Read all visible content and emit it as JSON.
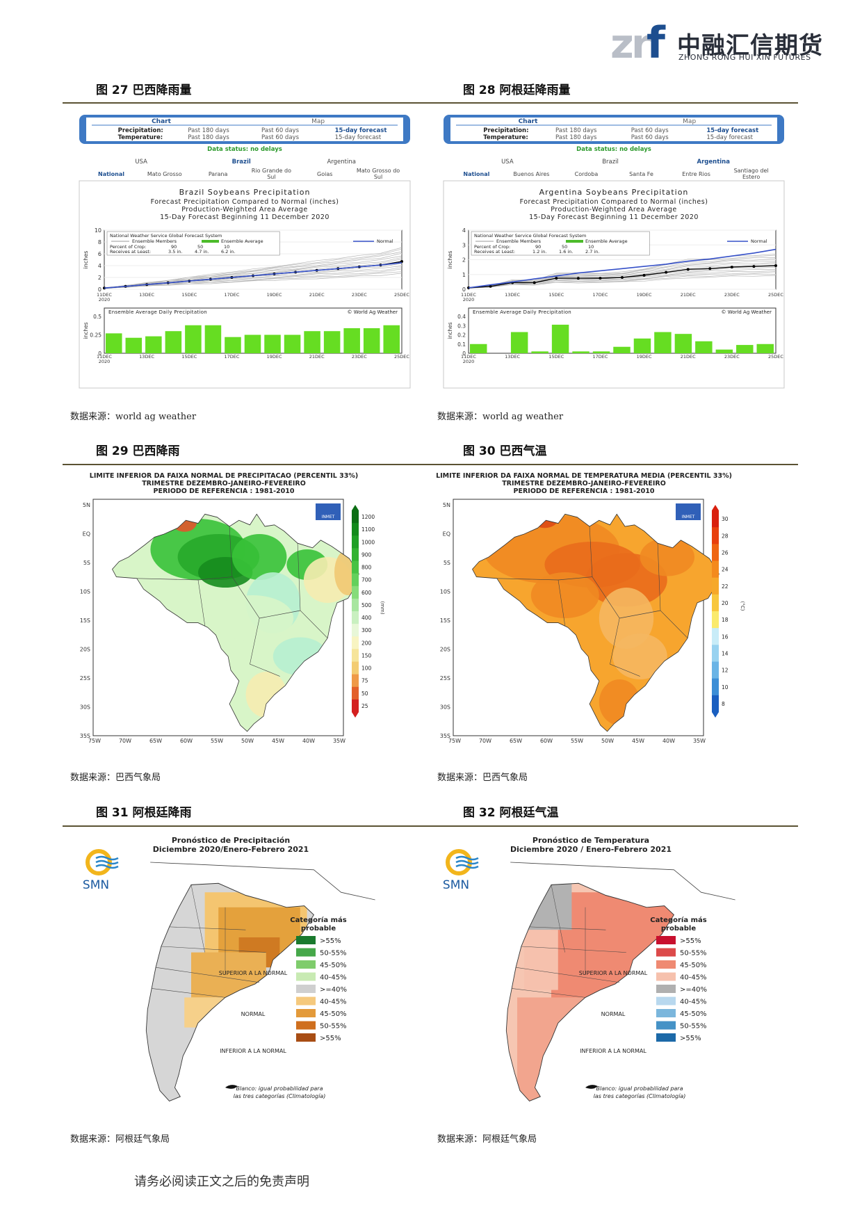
{
  "header": {
    "logo_cn": "中融汇信期货",
    "logo_en": "ZHONG RONG HUI XIN FUTURES"
  },
  "figures": {
    "fig27": {
      "title": "图 27 巴西降雨量",
      "source": "数据来源：world ag weather",
      "widget": {
        "tab_chart": "Chart",
        "tab_map": "Map",
        "row1_label": "Precipitation:",
        "row2_label": "Temperature:",
        "opt1": "Past 180 days",
        "opt2": "Past 60 days",
        "opt3": "15-day forecast",
        "status": "Data status: no delays",
        "countries": [
          "USA",
          "Brazil",
          "Argentina"
        ],
        "regions": [
          "National",
          "Mato Grosso",
          "Parana",
          "Rio Grande do Sul",
          "Goias",
          "Mato Grosso do Sul"
        ]
      },
      "chart_data": {
        "type": "line",
        "title": "Brazil Soybeans Precipitation",
        "subtitle": [
          "Forecast Precipitation Compared to Normal (inches)",
          "Production-Weighted Area Average",
          "15-Day Forecast Beginning 11 December 2020"
        ],
        "source_line": "National Weather Service Global Forecast System",
        "legend": [
          "Ensemble Members",
          "Ensemble Average",
          "Normal"
        ],
        "percent_crop_label": "Percent of Crop:",
        "receives_label": "Receives at Least:",
        "percent_values": [
          "90",
          "50",
          "10"
        ],
        "receives_values": [
          "3.5 in.",
          "4.7 in.",
          "6.2 in."
        ],
        "ylabel": "inches",
        "ylim": [
          0,
          10
        ],
        "yticks": [
          "0",
          "2",
          "4",
          "6",
          "8",
          "10"
        ],
        "xticks": [
          "11DEC\n2020",
          "13DEC",
          "15DEC",
          "17DEC",
          "19DEC",
          "21DEC",
          "23DEC",
          "25DEC"
        ],
        "series": [
          {
            "name": "Ensemble Average",
            "values": [
              0.2,
              0.5,
              0.8,
              1.1,
              1.4,
              1.7,
              2.0,
              2.3,
              2.6,
              2.9,
              3.2,
              3.5,
              3.8,
              4.1,
              4.7
            ]
          },
          {
            "name": "Normal",
            "values": [
              0.2,
              0.5,
              0.8,
              1.1,
              1.4,
              1.7,
              2.0,
              2.3,
              2.6,
              2.9,
              3.2,
              3.5,
              3.8,
              4.1,
              4.5
            ]
          }
        ],
        "bar_title": "Ensemble Average Daily Precipitation",
        "bar_credit": "© World Ag Weather",
        "bar_ylabel": "inches",
        "bar_ylim": [
          0,
          0.5
        ],
        "bar_yticks": [
          "0",
          "0.25",
          "0.5"
        ],
        "bar_values": [
          0.27,
          0.21,
          0.23,
          0.3,
          0.38,
          0.38,
          0.22,
          0.25,
          0.25,
          0.25,
          0.3,
          0.3,
          0.34,
          0.34,
          0.38
        ]
      }
    },
    "fig28": {
      "title": "图 28 阿根廷降雨量",
      "source": "数据来源：world ag weather",
      "widget": {
        "tab_chart": "Chart",
        "tab_map": "Map",
        "row1_label": "Precipitation:",
        "row2_label": "Temperature:",
        "opt1": "Past 180 days",
        "opt2": "Past 60 days",
        "opt3": "15-day forecast",
        "status": "Data status: no delays",
        "countries": [
          "USA",
          "Brazil",
          "Argentina"
        ],
        "regions": [
          "National",
          "Buenos Aires",
          "Cordoba",
          "Santa Fe",
          "Entre Rios",
          "Santiago del Estero"
        ]
      },
      "chart_data": {
        "type": "line",
        "title": "Argentina Soybeans Precipitation",
        "subtitle": [
          "Forecast Precipitation Compared to Normal (inches)",
          "Production-Weighted Area Average",
          "15-Day Forecast Beginning 11 December 2020"
        ],
        "source_line": "National Weather Service Global Forecast System",
        "legend": [
          "Ensemble Members",
          "Ensemble Average",
          "Normal"
        ],
        "percent_crop_label": "Percent of Crop:",
        "receives_label": "Receives at Least:",
        "percent_values": [
          "90",
          "50",
          "10"
        ],
        "receives_values": [
          "1.2 in.",
          "1.6 in.",
          "2.7 in."
        ],
        "ylabel": "inches",
        "ylim": [
          0,
          4
        ],
        "yticks": [
          "0",
          "1",
          "2",
          "3",
          "4"
        ],
        "xticks": [
          "11DEC\n2020",
          "13DEC",
          "15DEC",
          "17DEC",
          "19DEC",
          "21DEC",
          "23DEC",
          "25DEC"
        ],
        "series": [
          {
            "name": "Ensemble Average",
            "values": [
              0.1,
              0.2,
              0.45,
              0.45,
              0.75,
              0.75,
              0.75,
              0.8,
              0.95,
              1.15,
              1.35,
              1.4,
              1.5,
              1.55,
              1.6
            ]
          },
          {
            "name": "Normal",
            "values": [
              0.1,
              0.3,
              0.5,
              0.7,
              0.9,
              1.1,
              1.25,
              1.4,
              1.55,
              1.7,
              1.9,
              2.05,
              2.25,
              2.45,
              2.7
            ]
          }
        ],
        "bar_title": "Ensemble Average Daily Precipitation",
        "bar_credit": "© World Ag Weather",
        "bar_ylabel": "inches",
        "bar_ylim": [
          0,
          0.4
        ],
        "bar_yticks": [
          "0",
          "0.1",
          "0.2",
          "0.3",
          "0.4"
        ],
        "bar_values": [
          0.1,
          0.0,
          0.23,
          0.02,
          0.31,
          0.02,
          0.02,
          0.07,
          0.16,
          0.23,
          0.21,
          0.13,
          0.04,
          0.09,
          0.1
        ]
      }
    },
    "fig29": {
      "title": "图 29 巴西降雨",
      "source": "数据来源：巴西气象局",
      "map_title": [
        "LIMITE INFERIOR DA FAIXA NORMAL DE PRECIPITACAO (PERCENTIL 33%)",
        "TRIMESTRE DEZEMBRO-JANEIRO-FEVEREIRO",
        "PERIODO DE REFERENCIA : 1981-2010"
      ],
      "lat_labels": [
        "5N",
        "EQ",
        "5S",
        "10S",
        "15S",
        "20S",
        "25S",
        "30S",
        "35S"
      ],
      "lon_labels": [
        "75W",
        "70W",
        "65W",
        "60W",
        "55W",
        "50W",
        "45W",
        "40W",
        "35W"
      ],
      "legend_values": [
        "1200",
        "1100",
        "1000",
        "900",
        "800",
        "700",
        "600",
        "500",
        "400",
        "300",
        "200",
        "150",
        "100",
        "75",
        "50",
        "25"
      ],
      "legend_unit": "(mm)",
      "badge": "INMET"
    },
    "fig30": {
      "title": "图 30 巴西气温",
      "source": "数据来源：巴西气象局",
      "map_title": [
        "LIMITE INFERIOR DA FAIXA NORMAL DE TEMPERATURA MEDIA (PERCENTIL 33%)",
        "TRIMESTRE DEZEMBRO-JANEIRO-FEVEREIRO",
        "PERIODO DE REFERENCIA : 1981-2010"
      ],
      "lat_labels": [
        "5N",
        "EQ",
        "5S",
        "10S",
        "15S",
        "20S",
        "25S",
        "30S",
        "35S"
      ],
      "lon_labels": [
        "75W",
        "70W",
        "65W",
        "60W",
        "55W",
        "50W",
        "45W",
        "40W",
        "35W"
      ],
      "legend_values": [
        "30",
        "28",
        "26",
        "24",
        "22",
        "20",
        "18",
        "16",
        "14",
        "12",
        "10",
        "8"
      ],
      "legend_unit": "(°C)",
      "badge": "INMET"
    },
    "fig31": {
      "title": "图 31 阿根廷降雨",
      "source": "数据来源：阿根廷气象局",
      "map_title": [
        "Pronóstico de Precipitación",
        "Diciembre 2020/Enero-Febrero 2021"
      ],
      "agency": "SMN",
      "legend_title": [
        "Categoría más",
        "probable"
      ],
      "group_labels": [
        "SUPERIOR A LA NORMAL",
        "NORMAL",
        "INFERIOR A LA NORMAL"
      ],
      "legend_items": [
        ">55%",
        "50-55%",
        "45-50%",
        "40-45%",
        ">=40%",
        "40-45%",
        "45-50%",
        "50-55%",
        ">55%"
      ],
      "legend_colors": [
        "#1a7a2e",
        "#46a84a",
        "#7fcc6c",
        "#c8eab3",
        "#cfcfcf",
        "#f5c97d",
        "#e39a3a",
        "#cf6f1e",
        "#a84d14"
      ],
      "note": [
        "Blanco: igual probabilidad para",
        "las tres categorías (Climatología)"
      ]
    },
    "fig32": {
      "title": "图 32 阿根廷气温",
      "source": "数据来源：阿根廷气象局",
      "map_title": [
        "Pronóstico de Temperatura",
        "Diciembre 2020 / Enero-Febrero 2021"
      ],
      "agency": "SMN",
      "legend_title": [
        "Categoría más",
        "probable"
      ],
      "group_labels": [
        "SUPERIOR A LA NORMAL",
        "NORMAL",
        "INFERIOR A LA NORMAL"
      ],
      "legend_items": [
        ">55%",
        "50-55%",
        "45-50%",
        "40-45%",
        ">=40%",
        "40-45%",
        "45-50%",
        "50-55%",
        ">55%"
      ],
      "legend_colors": [
        "#c8102e",
        "#dc4a4a",
        "#ef8a72",
        "#f6c1ad",
        "#b0b0b0",
        "#b8d8ee",
        "#7bb6dc",
        "#4592c6",
        "#1c69a8"
      ],
      "note": [
        "Blanco: igual probabilidad para",
        "las tres categorías (Climatología)"
      ]
    }
  },
  "footer": {
    "disclaimer": "请务必阅读正文之后的免责声明"
  }
}
